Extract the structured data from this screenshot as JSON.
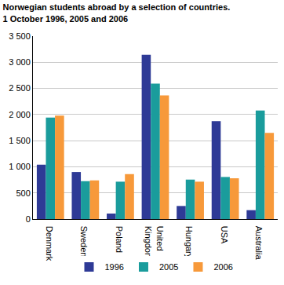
{
  "chart_data": {
    "type": "bar",
    "title": "Norwegian students abroad by a selection of countries.",
    "subtitle": "1 October 1996, 2005 and 2006",
    "categories": [
      "Denmark",
      "Sweden",
      "Poland",
      "United Kingdom",
      "Hungary",
      "USA",
      "Australia"
    ],
    "series": [
      {
        "name": "1996",
        "color": "#2e3a96",
        "values": [
          1040,
          900,
          105,
          3145,
          250,
          1875,
          170
        ]
      },
      {
        "name": "2005",
        "color": "#1a9c9c",
        "values": [
          1940,
          725,
          715,
          2590,
          755,
          805,
          2075
        ]
      },
      {
        "name": "2006",
        "color": "#f7993a",
        "values": [
          1980,
          740,
          860,
          2365,
          715,
          780,
          1650
        ]
      }
    ],
    "ylim": [
      0,
      3500
    ],
    "yticks": [
      0,
      500,
      {
        "value": 1000,
        "label": "1 000"
      },
      {
        "value": 1500,
        "label": "1 500"
      },
      {
        "value": 2000,
        "label": "2 000"
      },
      {
        "value": 2500,
        "label": "2 500"
      },
      {
        "value": 3000,
        "label": "3 000"
      },
      {
        "value": 3500,
        "label": "3 500"
      }
    ],
    "grid": true,
    "legend": "bottom"
  }
}
